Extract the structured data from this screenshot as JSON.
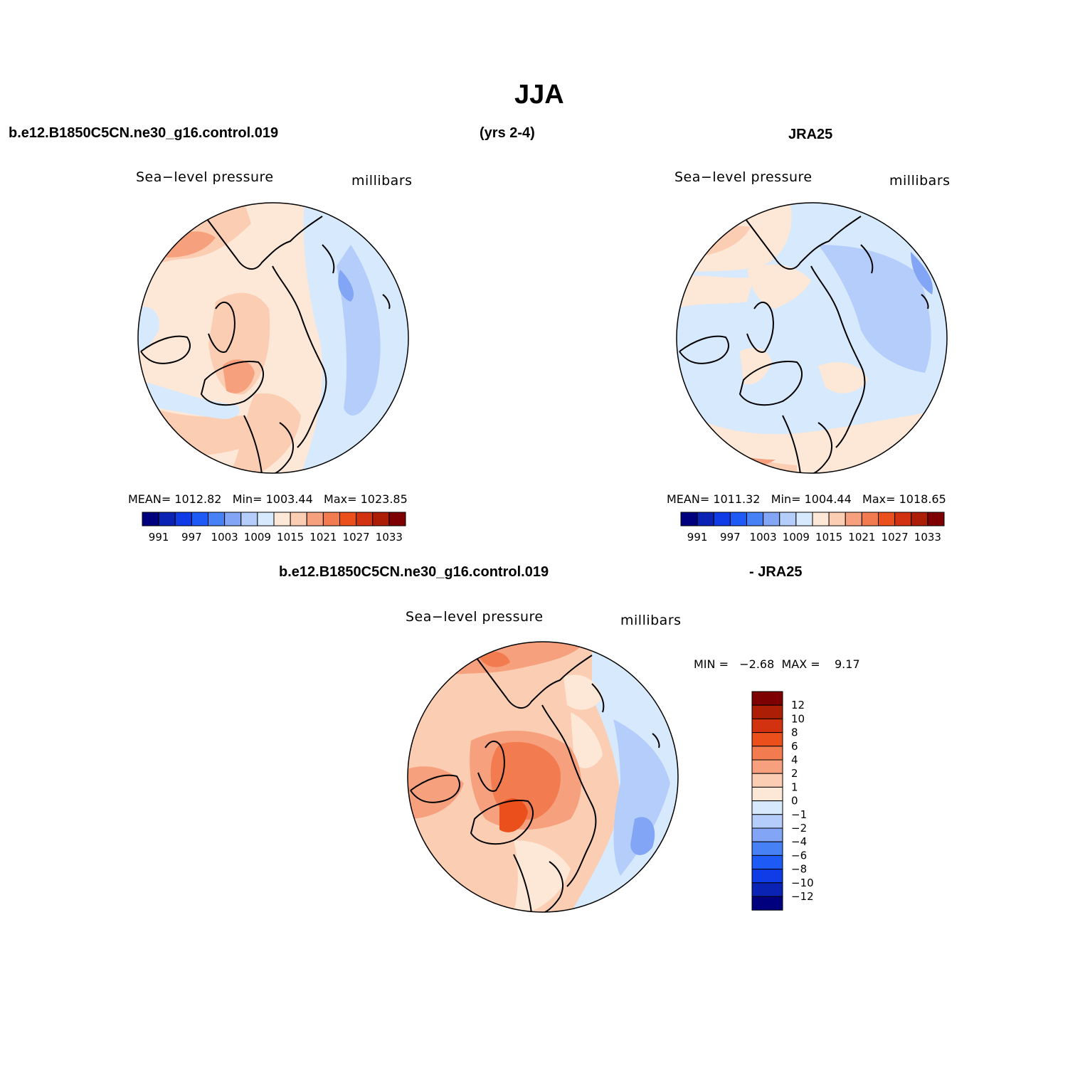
{
  "figure": {
    "title": "JJA",
    "case_name": "b.e12.B1850C5CN.ne30_g16.control.019",
    "years": "(yrs 2-4)",
    "obs_name": "JRA25",
    "diff_case_name": "b.e12.B1850C5CN.ne30_g16.control.019",
    "diff_obs_name": "- JRA25"
  },
  "panels": {
    "model": {
      "variable": "Sea−level pressure",
      "units": "millibars",
      "stats": "MEAN= 1012.82   Min= 1003.44   Max= 1023.85"
    },
    "obs": {
      "variable": "Sea−level pressure",
      "units": "millibars",
      "stats": "MEAN= 1011.32   Min= 1004.44   Max= 1018.65"
    },
    "diff": {
      "variable": "Sea−level pressure",
      "units": "millibars",
      "stats": "MIN =   −2.68  MAX =    9.17"
    }
  },
  "colorbars": {
    "abs": {
      "colors": [
        "#00007f",
        "#0a23b4",
        "#0f3ce6",
        "#1e5af5",
        "#4682f5",
        "#82a5f5",
        "#b4cdfa",
        "#d7e9fc",
        "#fde7d6",
        "#fbcdb2",
        "#f6a07d",
        "#f27b50",
        "#ea4f1c",
        "#d2320f",
        "#ac1f06",
        "#7e0000"
      ],
      "labels": [
        "991",
        "997",
        "1003",
        "1009",
        "1015",
        "1021",
        "1027",
        "1033"
      ]
    },
    "diff": {
      "colors": [
        "#7e0000",
        "#ac1f06",
        "#d2320f",
        "#ea4f1c",
        "#f27b50",
        "#f6a07d",
        "#fbcdb2",
        "#fde7d6",
        "#d7e9fc",
        "#b4cdfa",
        "#82a5f5",
        "#4682f5",
        "#1e5af5",
        "#0f3ce6",
        "#0a23b4",
        "#00007f"
      ],
      "labels": [
        "12",
        "10",
        "8",
        "6",
        "4",
        "2",
        "1",
        "0",
        "−1",
        "−2",
        "−4",
        "−6",
        "−8",
        "−10",
        "−12"
      ]
    }
  }
}
